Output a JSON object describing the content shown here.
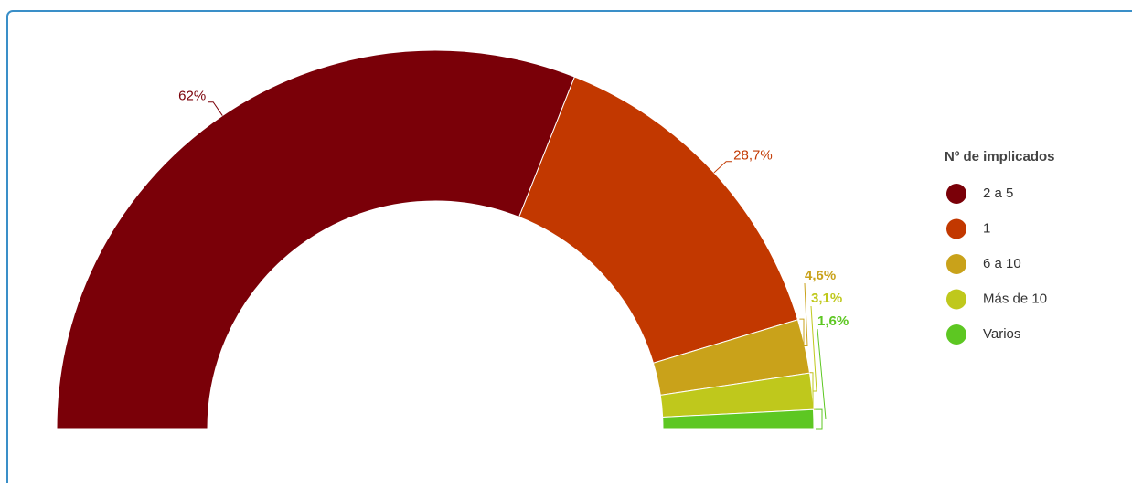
{
  "chart_data": {
    "type": "semi-donut",
    "legend_title": "Nº de implicados",
    "categories": [
      "2 a 5",
      "1",
      "6 a 10",
      "Más de 10",
      "Varios"
    ],
    "values": [
      62,
      28.7,
      4.6,
      3.1,
      1.6
    ],
    "value_labels": [
      "62%",
      "28,7%",
      "4,6%",
      "3,1%",
      "1,6%"
    ],
    "colors": [
      "#7a0008",
      "#c23800",
      "#c9a21a",
      "#bfc81c",
      "#5dc722"
    ],
    "legend": "right"
  }
}
